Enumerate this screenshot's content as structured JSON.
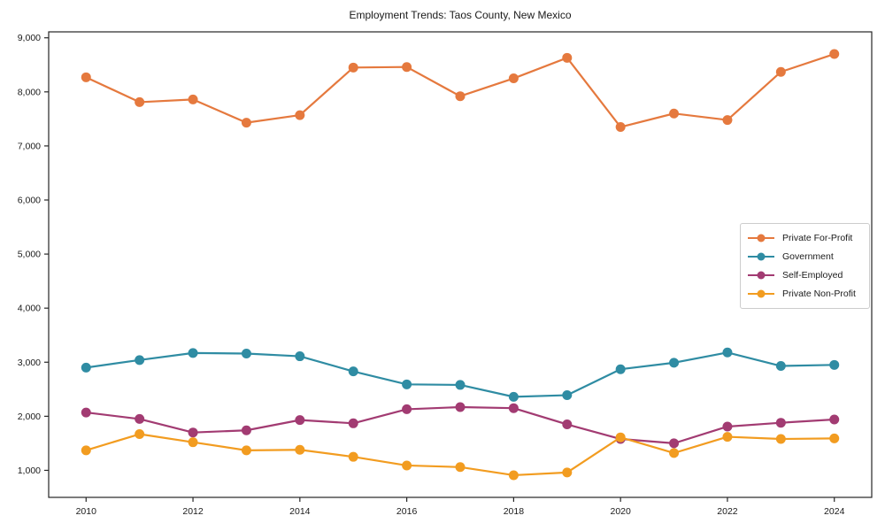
{
  "chart_data": {
    "type": "line",
    "title": "Employment Trends: Taos County, New Mexico",
    "xlabel": "",
    "ylabel": "",
    "x": [
      2010,
      2011,
      2012,
      2013,
      2014,
      2015,
      2016,
      2017,
      2018,
      2019,
      2020,
      2021,
      2022,
      2023,
      2024
    ],
    "series": [
      {
        "name": "Private For-Profit",
        "color": "#e5793e",
        "values": [
          8270,
          7810,
          7860,
          7430,
          7570,
          8450,
          8460,
          7920,
          8250,
          8630,
          7350,
          7600,
          7480,
          8370,
          8700
        ]
      },
      {
        "name": "Government",
        "color": "#2f8ca3",
        "values": [
          2900,
          3040,
          3170,
          3160,
          3110,
          2830,
          2590,
          2580,
          2360,
          2390,
          2870,
          2990,
          3180,
          2930,
          2950
        ]
      },
      {
        "name": "Self-Employed",
        "color": "#a23b72",
        "values": [
          2070,
          1950,
          1700,
          1740,
          1930,
          1870,
          2130,
          2170,
          2150,
          1850,
          1580,
          1500,
          1810,
          1880,
          1940
        ]
      },
      {
        "name": "Private Non-Profit",
        "color": "#f29c20",
        "values": [
          1370,
          1670,
          1520,
          1370,
          1380,
          1250,
          1090,
          1060,
          910,
          960,
          1610,
          1320,
          1620,
          1580,
          1590
        ]
      }
    ],
    "x_tick_values": [
      2010,
      2012,
      2014,
      2016,
      2018,
      2020,
      2022,
      2024
    ],
    "x_tick_labels": [
      "2010",
      "2012",
      "2014",
      "2016",
      "2018",
      "2020",
      "2022",
      "2024"
    ],
    "y_tick_values": [
      1000,
      2000,
      3000,
      4000,
      5000,
      6000,
      7000,
      8000,
      9000
    ],
    "y_tick_labels": [
      "1,000",
      "2,000",
      "3,000",
      "4,000",
      "5,000",
      "6,000",
      "7,000",
      "8,000",
      "9,000"
    ],
    "xlim": [
      2009.3,
      2024.7
    ],
    "ylim": [
      500,
      9110
    ],
    "grid": false,
    "legend_position": "center right",
    "spine_color": "#262626",
    "marker": "circle",
    "line_width": 2.2,
    "marker_radius": 5.5
  }
}
